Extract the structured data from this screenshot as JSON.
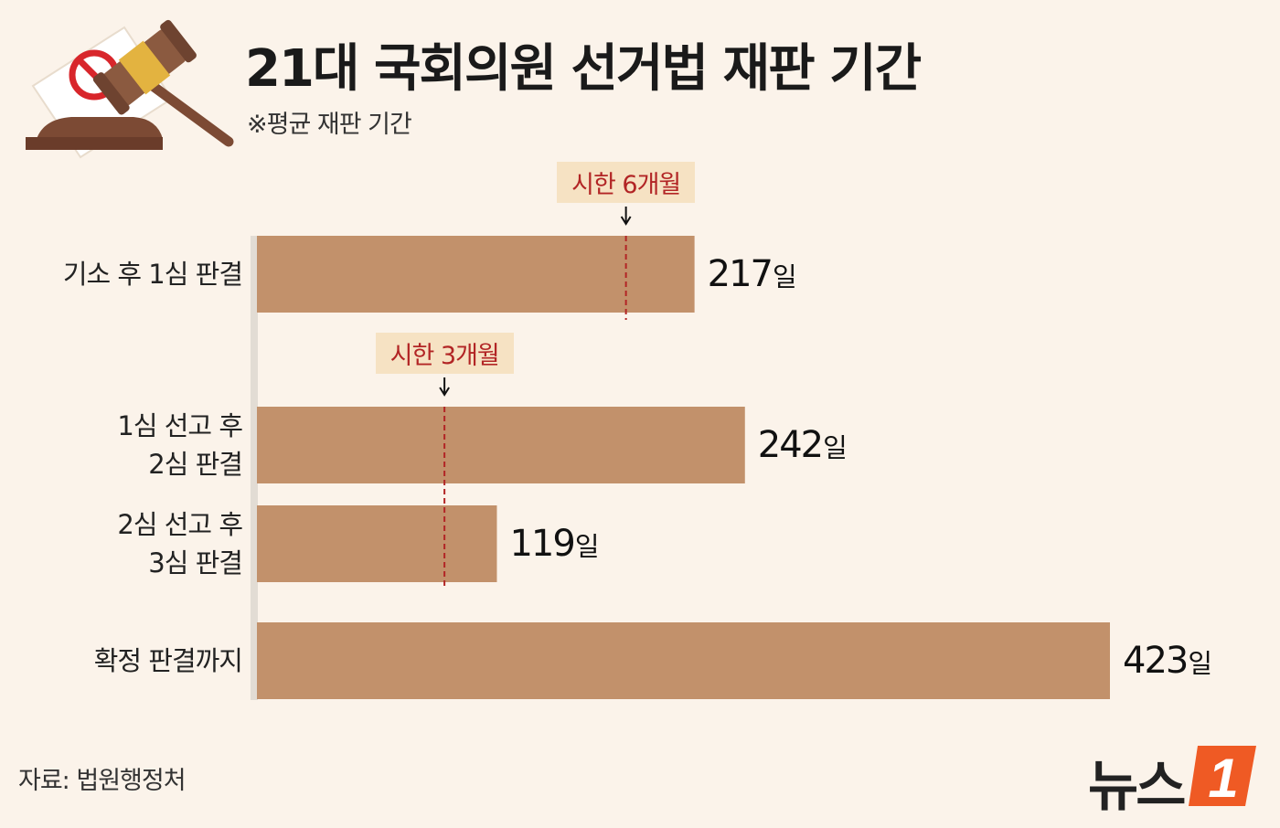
{
  "title": "21대 국회의원 선거법 재판 기간",
  "subtitle": "※평균 재판 기간",
  "source": "자료: 법원행정처",
  "logo": {
    "text": "뉴스",
    "badge": "1"
  },
  "colors": {
    "bar": "#c2916b",
    "limit_line": "#b22525",
    "tag_bg": "#f6e2c3",
    "background": "#fbf3ea"
  },
  "icons": [
    "gavel-icon",
    "no-sign-icon"
  ],
  "chart_data": {
    "type": "bar",
    "orientation": "horizontal",
    "categories": [
      [
        "기소 후 1심 판결"
      ],
      [
        "1심 선고 후",
        "2심 판결"
      ],
      [
        "2심 선고 후",
        "3심 판결"
      ],
      [
        "확정 판결까지"
      ]
    ],
    "values": [
      217,
      242,
      119,
      423
    ],
    "value_unit": "일",
    "xlim": [
      0,
      423
    ],
    "grid": false,
    "legend": "none",
    "reference_lines": [
      {
        "label": "시한 6개월",
        "value": 183,
        "applies_to": [
          0
        ]
      },
      {
        "label": "시한 3개월",
        "value": 93,
        "applies_to": [
          1,
          2
        ]
      }
    ]
  }
}
